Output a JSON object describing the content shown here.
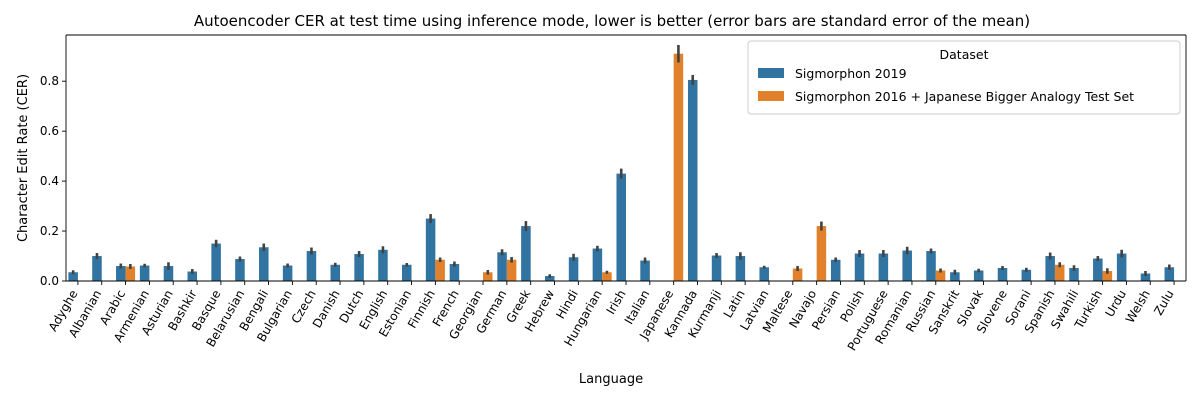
{
  "chart_data": {
    "type": "bar",
    "title": "Autoencoder CER at test time using inference mode, lower is better (error bars are standard error of the mean)",
    "xlabel": "Language",
    "ylabel": "Character Edit Rate (CER)",
    "ylim": [
      0,
      0.985
    ],
    "yticks": [
      0.0,
      0.2,
      0.4,
      0.6,
      0.8
    ],
    "ytick_labels": [
      "0.0",
      "0.2",
      "0.4",
      "0.6",
      "0.8"
    ],
    "grid": false,
    "legend": {
      "title": "Dataset",
      "placement": "top-right"
    },
    "categories": [
      "Adyghe",
      "Albanian",
      "Arabic",
      "Armenian",
      "Asturian",
      "Bashkir",
      "Basque",
      "Belarusian",
      "Bengali",
      "Bulgarian",
      "Czech",
      "Danish",
      "Dutch",
      "English",
      "Estonian",
      "Finnish",
      "French",
      "Georgian",
      "German",
      "Greek",
      "Hebrew",
      "Hindi",
      "Hungarian",
      "Irish",
      "Italian",
      "Japanese",
      "Kannada",
      "Kurmanji",
      "Latin",
      "Latvian",
      "Maltese",
      "Navajo",
      "Persian",
      "Polish",
      "Portuguese",
      "Romanian",
      "Russian",
      "Sanskrit",
      "Slovak",
      "Slovene",
      "Sorani",
      "Spanish",
      "Swahili",
      "Turkish",
      "Urdu",
      "Welsh",
      "Zulu"
    ],
    "series": [
      {
        "name": "Sigmorphon 2019",
        "color": "#3274a1",
        "values": [
          0.035,
          0.1,
          0.06,
          0.062,
          0.06,
          0.038,
          0.15,
          0.088,
          0.135,
          0.062,
          0.12,
          0.065,
          0.108,
          0.125,
          0.065,
          0.25,
          0.068,
          null,
          0.115,
          0.22,
          0.02,
          0.095,
          0.13,
          0.43,
          0.082,
          null,
          0.805,
          0.102,
          0.1,
          0.055,
          null,
          null,
          0.085,
          0.11,
          0.11,
          0.122,
          0.12,
          0.035,
          0.042,
          0.052,
          0.045,
          0.1,
          0.052,
          0.09,
          0.11,
          0.03,
          0.055
        ],
        "errors": [
          0.008,
          0.012,
          0.01,
          0.007,
          0.015,
          0.01,
          0.015,
          0.01,
          0.015,
          0.008,
          0.014,
          0.008,
          0.012,
          0.014,
          0.007,
          0.018,
          0.01,
          null,
          0.012,
          0.02,
          0.007,
          0.014,
          0.011,
          0.02,
          0.012,
          null,
          0.02,
          0.01,
          0.015,
          0.006,
          null,
          null,
          0.009,
          0.014,
          0.014,
          0.015,
          0.01,
          0.01,
          0.007,
          0.008,
          0.008,
          0.014,
          0.011,
          0.01,
          0.015,
          0.01,
          0.011
        ]
      },
      {
        "name": "Sigmorphon 2016 + Japanese Bigger Analogy Test Set",
        "color": "#e1812c",
        "values": [
          null,
          null,
          0.058,
          null,
          null,
          null,
          null,
          null,
          null,
          null,
          null,
          null,
          null,
          null,
          null,
          0.085,
          null,
          0.035,
          0.085,
          null,
          null,
          null,
          0.035,
          null,
          null,
          0.91,
          null,
          null,
          null,
          null,
          0.05,
          0.22,
          null,
          null,
          null,
          null,
          0.042,
          null,
          null,
          null,
          null,
          0.065,
          null,
          0.04,
          null,
          null,
          null
        ],
        "errors": [
          null,
          null,
          0.01,
          null,
          null,
          null,
          null,
          null,
          null,
          null,
          null,
          null,
          null,
          null,
          null,
          0.009,
          null,
          0.009,
          0.011,
          null,
          null,
          null,
          0.006,
          null,
          null,
          0.035,
          null,
          null,
          null,
          null,
          0.01,
          0.018,
          null,
          null,
          null,
          null,
          0.008,
          null,
          null,
          null,
          null,
          0.01,
          null,
          0.011,
          null,
          null,
          null
        ]
      }
    ]
  }
}
